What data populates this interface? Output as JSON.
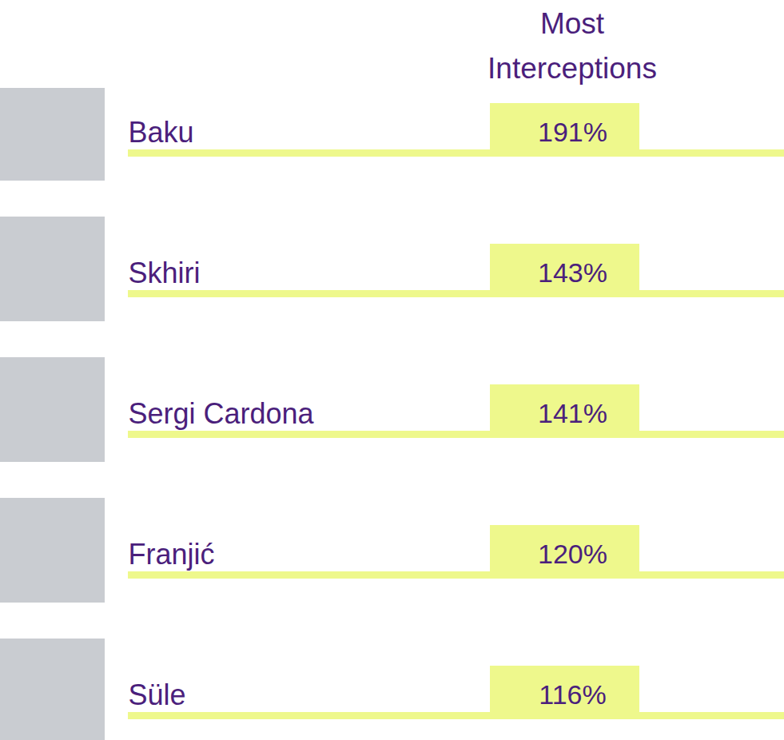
{
  "chart_data": {
    "type": "bar",
    "title": "Most Interceptions",
    "categories": [
      "Baku",
      "Skhiri",
      "Sergi Cardona",
      "Franjić",
      "Süle"
    ],
    "values": [
      191,
      143,
      141,
      120,
      116
    ],
    "value_labels": [
      "191%",
      "143%",
      "141%",
      "120%",
      "116%"
    ],
    "orientation": "horizontal",
    "data_labels": true,
    "tick_labels": "y",
    "color": "#eef88c"
  }
}
